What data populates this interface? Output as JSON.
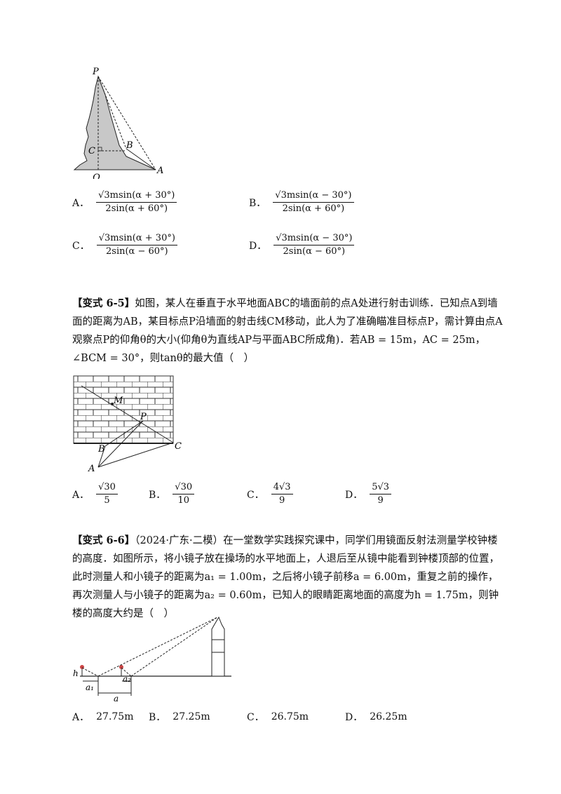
{
  "q1": {
    "figure_labels": {
      "P": "P",
      "B": "B",
      "C": "C",
      "Q": "Q",
      "A": "A"
    },
    "options": [
      {
        "label": "A．",
        "num": "√3msin(α + 30°)",
        "den": "2sin(α + 60°)"
      },
      {
        "label": "B．",
        "num": "√3msin(α − 30°)",
        "den": "2sin(α + 60°)"
      },
      {
        "label": "C．",
        "num": "√3msin(α + 30°)",
        "den": "2sin(α − 60°)"
      },
      {
        "label": "D．",
        "num": "√3msin(α − 30°)",
        "den": "2sin(α − 60°)"
      }
    ]
  },
  "q65": {
    "tag": "【变式 6-5】",
    "text": "如图，某人在垂直于水平地面ABC的墙面前的点A处进行射击训练．已知点A到墙面的距离为AB，某目标点P沿墙面的射击线CM移动，此人为了准确瞄准目标点P，需计算由点A观察点P的仰角θ的大小(仰角θ为直线AP与平面ABC所成角)．若AB = 15m，AC = 25m，∠BCM = 30°，则tanθ的最大值（　）",
    "figure_labels": {
      "M": "M",
      "P": "P",
      "B": "B",
      "C": "C",
      "A": "A"
    },
    "options": [
      {
        "label": "A．",
        "num": "√30",
        "den": "5"
      },
      {
        "label": "B．",
        "num": "√30",
        "den": "10"
      },
      {
        "label": "C．",
        "num": "4√3",
        "den": "9"
      },
      {
        "label": "D．",
        "num": "5√3",
        "den": "9"
      }
    ]
  },
  "q66": {
    "tag": "【变式 6-6】",
    "text": "（2024·广东·二模）在一堂数学实践探究课中，同学们用镜面反射法测量学校钟楼的高度．如图所示，将小镜子放在操场的水平地面上，人退后至从镜中能看到钟楼顶部的位置，此时测量人和小镜子的距离为a₁ = 1.00m，之后将小镜子前移a = 6.00m，重复之前的操作，再次测量人与小镜子的距离为a₂ = 0.60m，已知人的眼睛距离地面的高度为h = 1.75m，则钟楼的高度大约是（　）",
    "figure_labels": {
      "h": "h",
      "a1": "a₁",
      "a2": "a₂",
      "a": "a"
    },
    "options": [
      {
        "label": "A．",
        "value": "27.75m"
      },
      {
        "label": "B．",
        "value": "27.25m"
      },
      {
        "label": "C．",
        "value": "26.75m"
      },
      {
        "label": "D．",
        "value": "26.25m"
      }
    ]
  }
}
